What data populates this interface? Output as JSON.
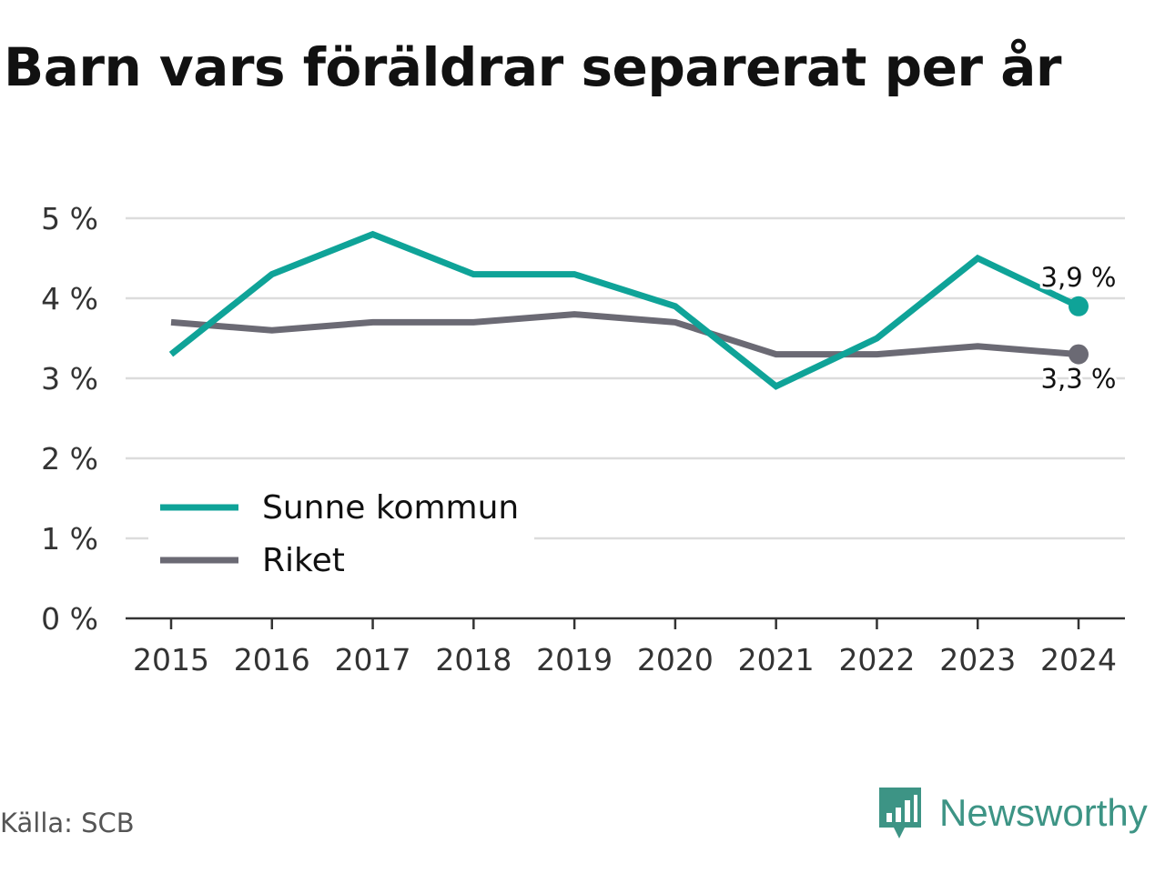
{
  "title": "Barn vars föräldrar separerat per år",
  "source": "Källa: SCB",
  "brand": "Newsworthy",
  "colors": {
    "kommun": "#0fa398",
    "riket": "#6b6a74",
    "grid": "#dcdcdc",
    "axis": "#333333"
  },
  "chart_data": {
    "type": "line",
    "title": "Barn vars föräldrar separerat per år",
    "xlabel": "",
    "ylabel": "",
    "x": [
      "2015",
      "2016",
      "2017",
      "2018",
      "2019",
      "2020",
      "2021",
      "2022",
      "2023",
      "2024"
    ],
    "ylim": [
      0,
      5
    ],
    "yticks": [
      0,
      1,
      2,
      3,
      4,
      5
    ],
    "ytick_labels": [
      "0 %",
      "1 %",
      "2 %",
      "3 %",
      "4 %",
      "5 %"
    ],
    "grid": true,
    "legend_position": "bottom-left",
    "series": [
      {
        "name": "Sunne kommun",
        "color": "#0fa398",
        "values": [
          3.3,
          4.3,
          4.8,
          4.3,
          4.3,
          3.9,
          2.9,
          3.5,
          4.5,
          3.9
        ],
        "end_label": "3,9 %"
      },
      {
        "name": "Riket",
        "color": "#6b6a74",
        "values": [
          3.7,
          3.6,
          3.7,
          3.7,
          3.8,
          3.7,
          3.3,
          3.3,
          3.4,
          3.3
        ],
        "end_label": "3,3 %"
      }
    ]
  }
}
